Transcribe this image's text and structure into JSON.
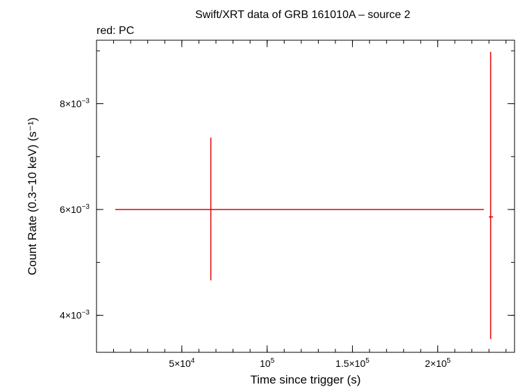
{
  "chart_data": {
    "type": "scatter",
    "title": "Swift/XRT data of GRB 161010A – source 2",
    "subtitle": "red: PC",
    "xlabel": "Time since trigger (s)",
    "ylabel": "Count Rate (0.3−10 keV) (s⁻¹)",
    "xlim": [
      0,
      245000
    ],
    "ylim": [
      0.0033,
      0.0092
    ],
    "x_ticks": [
      {
        "value": 50000,
        "base": "5×10",
        "exp": "4"
      },
      {
        "value": 100000,
        "base": "10",
        "exp": "5"
      },
      {
        "value": 150000,
        "base": "1.5×10",
        "exp": "5"
      },
      {
        "value": 200000,
        "base": "2×10",
        "exp": "5"
      }
    ],
    "y_ticks": [
      {
        "value": 0.004,
        "base": "4×10",
        "exp": "−3"
      },
      {
        "value": 0.006,
        "base": "6×10",
        "exp": "−3"
      },
      {
        "value": 0.008,
        "base": "8×10",
        "exp": "−3"
      }
    ],
    "x_minor_step": 10000,
    "y_minor_step": 0.001,
    "series": [
      {
        "color": "#e00000",
        "points": [
          {
            "x": 67000,
            "y": 0.006,
            "x_low": 11000,
            "x_high": 227000,
            "y_low": 0.00466,
            "y_high": 0.00736
          },
          {
            "x": 231000,
            "y": 0.00586,
            "x_low": 230000,
            "x_high": 232500,
            "y_low": 0.00355,
            "y_high": 0.00898
          }
        ]
      }
    ]
  }
}
